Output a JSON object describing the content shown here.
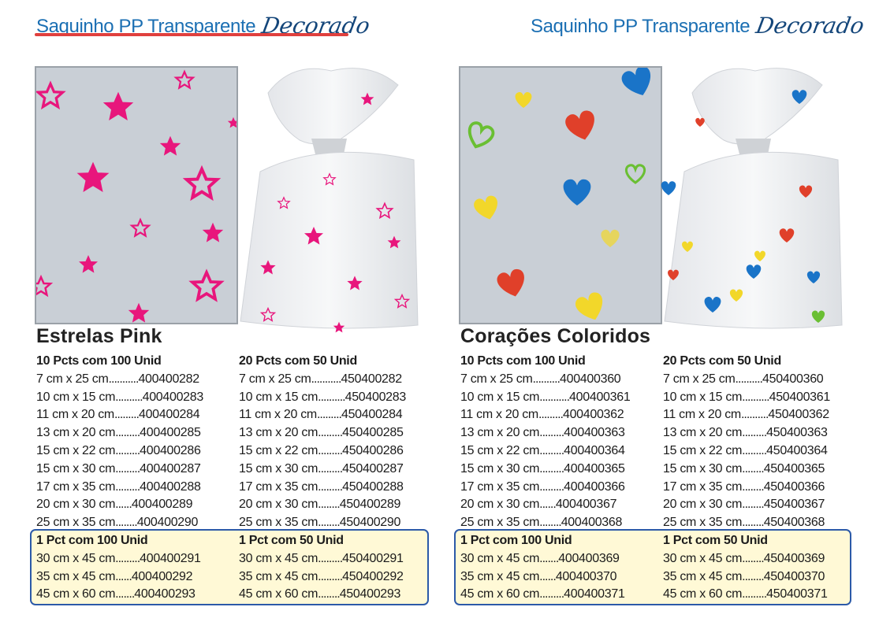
{
  "panels": [
    {
      "header": {
        "title": "Saquinho PP Transparente",
        "script": "Decorado"
      },
      "name": "Estrelas Pink",
      "columns": [
        {
          "header": "10 Pcts com 100 Unid",
          "rows": [
            {
              "size": "7 cm x 25 cm",
              "dots": "...........",
              "code": "400400282"
            },
            {
              "size": "10 cm x 15 cm",
              "dots": "..........",
              "code": "400400283"
            },
            {
              "size": "11 cm x 20 cm",
              "dots": ".........",
              "code": "400400284"
            },
            {
              "size": "13 cm x 20 cm",
              "dots": ".........",
              "code": "400400285"
            },
            {
              "size": "15 cm x 22 cm",
              "dots": ".........",
              "code": "400400286"
            },
            {
              "size": "15 cm x 30 cm",
              "dots": ".........",
              "code": "400400287"
            },
            {
              "size": "17 cm x 35 cm",
              "dots": ".........",
              "code": "400400288"
            },
            {
              "size": "20 cm x 30 cm",
              "dots": "......",
              "code": "400400289"
            },
            {
              "size": "25 cm x 35 cm",
              "dots": "........",
              "code": "400400290"
            }
          ],
          "pack_header": "1 Pct com 100 Unid",
          "pack_rows": [
            {
              "size": "30 cm x 45 cm",
              "dots": ".........",
              "code": "400400291"
            },
            {
              "size": "35 cm x 45 cm",
              "dots": "......",
              "code": "400400292"
            },
            {
              "size": "45 cm x 60 cm",
              "dots": ".......",
              "code": "400400293"
            }
          ]
        },
        {
          "header": "20 Pcts com 50 Unid",
          "rows": [
            {
              "size": "7 cm x 25 cm",
              "dots": "...........",
              "code": "450400282"
            },
            {
              "size": "10 cm x 15 cm",
              "dots": "..........",
              "code": "450400283"
            },
            {
              "size": "11 cm x 20 cm",
              "dots": ".........",
              "code": "450400284"
            },
            {
              "size": "13 cm x 20 cm",
              "dots": ".........",
              "code": "450400285"
            },
            {
              "size": "15 cm x 22 cm",
              "dots": ".........",
              "code": "450400286"
            },
            {
              "size": "15 cm x 30 cm",
              "dots": ".........",
              "code": "450400287"
            },
            {
              "size": "17 cm x 35 cm",
              "dots": ".........",
              "code": "450400288"
            },
            {
              "size": "20 cm x 30 cm",
              "dots": "........",
              "code": "450400289"
            },
            {
              "size": "25 cm x 35 cm",
              "dots": "........",
              "code": "450400290"
            }
          ],
          "pack_header": "1 Pct com 50 Unid",
          "pack_rows": [
            {
              "size": "30 cm x 45 cm",
              "dots": ".........",
              "code": "450400291"
            },
            {
              "size": "35 cm x 45 cm",
              "dots": ".........",
              "code": "450400292"
            },
            {
              "size": "45 cm x 60 cm",
              "dots": "........",
              "code": "450400293"
            }
          ]
        }
      ]
    },
    {
      "header": {
        "title": "Saquinho PP Transparente",
        "script": "Decorado"
      },
      "name": "Corações Coloridos",
      "columns": [
        {
          "header": "10 Pcts com 100 Unid",
          "rows": [
            {
              "size": "7 cm x 25 cm",
              "dots": "..........",
              "code": "400400360"
            },
            {
              "size": "10 cm x 15 cm",
              "dots": "...........",
              "code": "400400361"
            },
            {
              "size": "11 cm x 20 cm",
              "dots": ".........",
              "code": "400400362"
            },
            {
              "size": "13 cm x 20 cm",
              "dots": ".........",
              "code": "400400363"
            },
            {
              "size": "15 cm x 22 cm",
              "dots": ".........",
              "code": "400400364"
            },
            {
              "size": "15 cm x 30 cm",
              "dots": ".........",
              "code": "400400365"
            },
            {
              "size": "17 cm x 35 cm",
              "dots": ".........",
              "code": "400400366"
            },
            {
              "size": "20 cm x 30 cm",
              "dots": "......",
              "code": "400400367"
            },
            {
              "size": "25 cm x 35 cm",
              "dots": "........",
              "code": "400400368"
            }
          ],
          "pack_header": "1 Pct com 100 Unid",
          "pack_rows": [
            {
              "size": "30 cm x 45 cm",
              "dots": ".......",
              "code": "400400369"
            },
            {
              "size": "35 cm x 45 cm",
              "dots": "......",
              "code": "400400370"
            },
            {
              "size": "45 cm x 60 cm",
              "dots": ".........",
              "code": "400400371"
            }
          ]
        },
        {
          "header": "20 Pcts com 50 Unid",
          "rows": [
            {
              "size": "7 cm x 25 cm",
              "dots": "..........",
              "code": "450400360"
            },
            {
              "size": "10 cm x 15 cm",
              "dots": "..........",
              "code": "450400361"
            },
            {
              "size": "11 cm x 20 cm",
              "dots": "..........",
              "code": "450400362"
            },
            {
              "size": "13 cm x 20 cm",
              "dots": ".........",
              "code": "450400363"
            },
            {
              "size": "15 cm x 22 cm",
              "dots": ".........",
              "code": "450400364"
            },
            {
              "size": "15 cm x 30 cm",
              "dots": "........",
              "code": "450400365"
            },
            {
              "size": "17 cm x 35 cm",
              "dots": "........",
              "code": "450400366"
            },
            {
              "size": "20 cm x 30 cm",
              "dots": "........",
              "code": "450400367"
            },
            {
              "size": "25 cm x 35 cm",
              "dots": "........",
              "code": "450400368"
            }
          ],
          "pack_header": "1 Pct com 50 Unid",
          "pack_rows": [
            {
              "size": "30 cm x 45 cm",
              "dots": "........",
              "code": "450400369"
            },
            {
              "size": "35 cm x 45 cm",
              "dots": "........",
              "code": "450400370"
            },
            {
              "size": "45 cm x 60 cm",
              "dots": ".........",
              "code": "450400371"
            }
          ]
        }
      ]
    }
  ],
  "colors": {
    "header_blue": "#1b6fb3",
    "script_blue": "#14467a",
    "underline_red": "#e0403e",
    "star_pink": "#e8167c",
    "highlight_fill": "#fff9d6",
    "highlight_border": "#2c5aa8"
  }
}
